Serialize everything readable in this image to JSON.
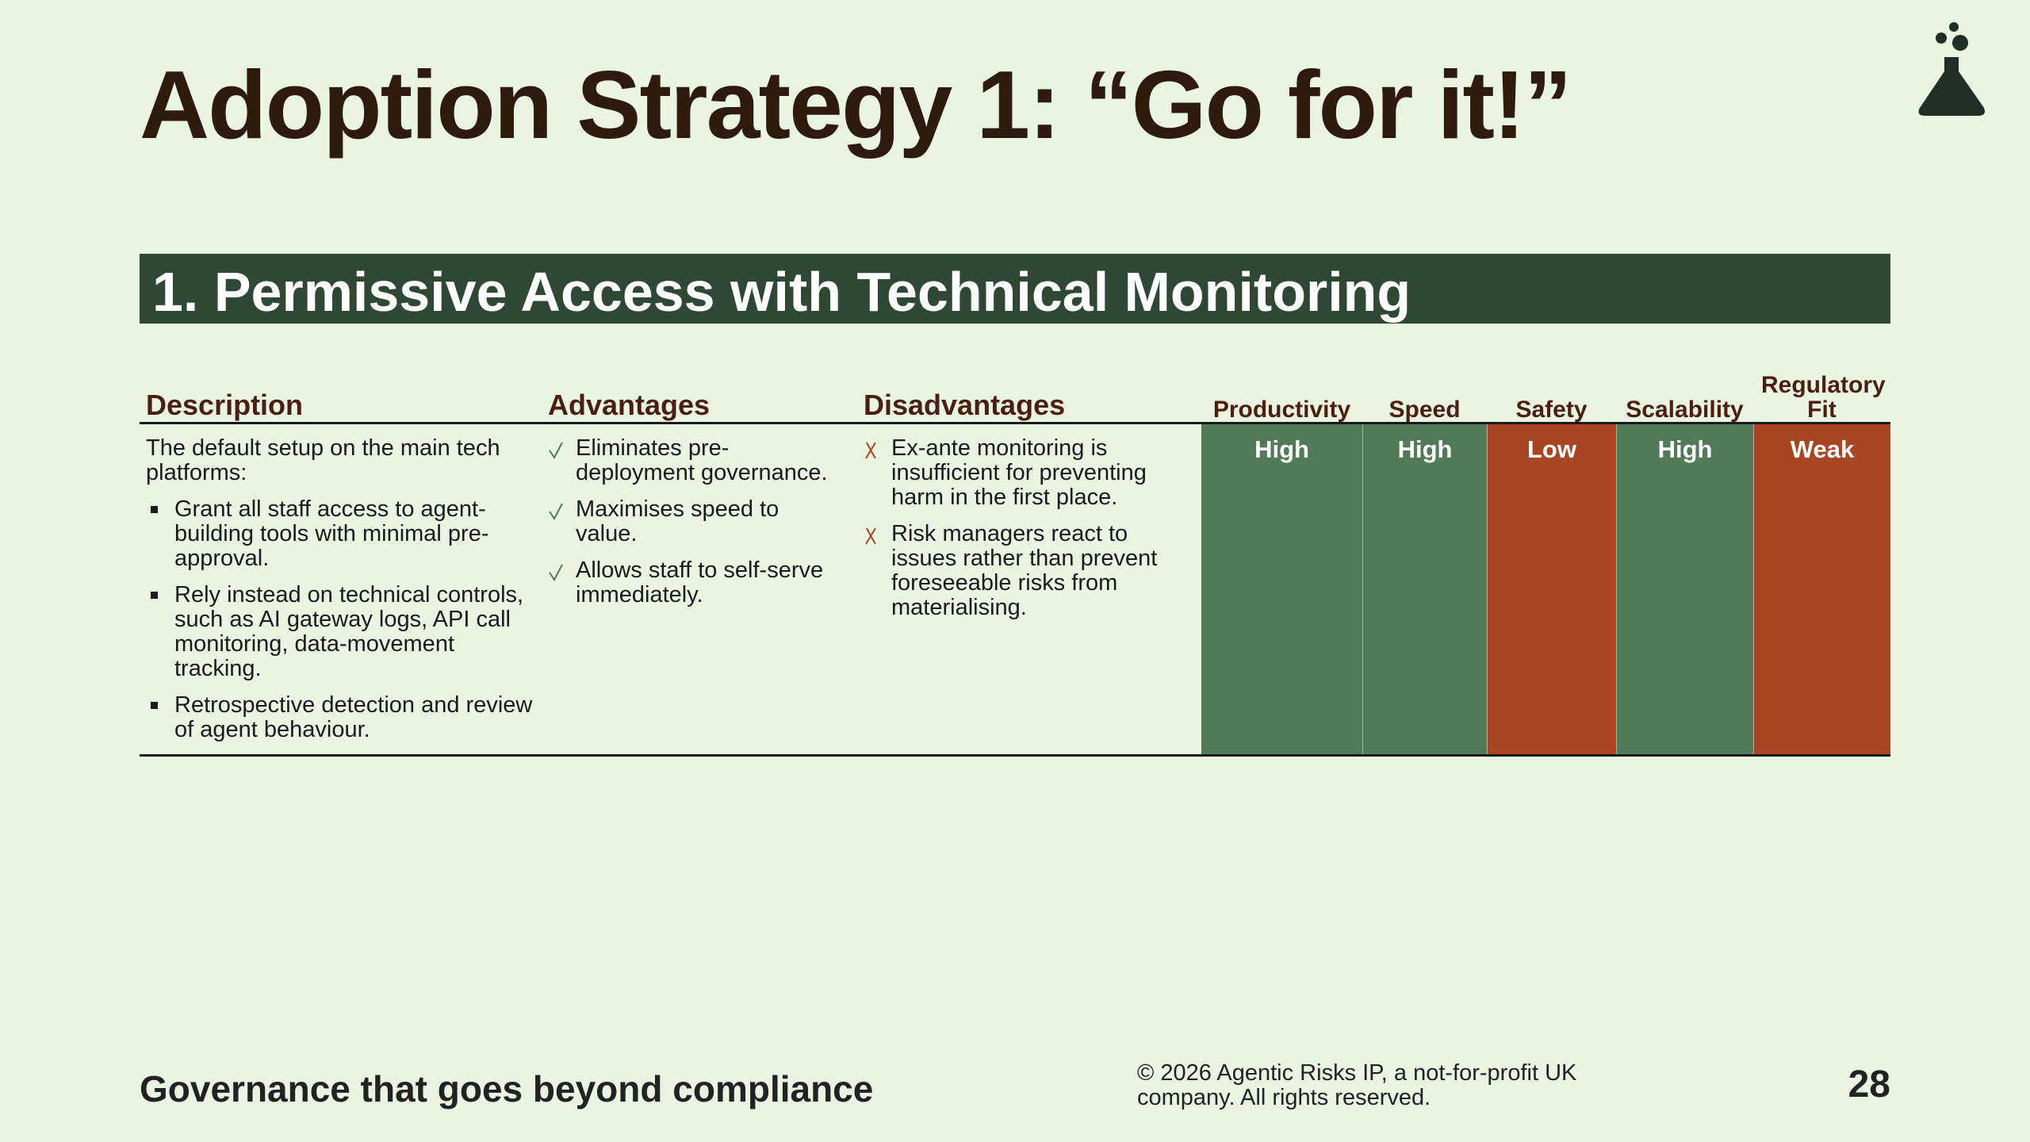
{
  "header": {
    "title": "Adoption Strategy 1: “Go for it!”"
  },
  "section": {
    "title": "1. Permissive Access with Technical Monitoring"
  },
  "table": {
    "columns": [
      "Description",
      "Advantages",
      "Disadvantages",
      "Productivity",
      "Speed",
      "Safety",
      "Scalability",
      "Regulatory Fit"
    ],
    "rows": [
      {
        "description": {
          "intro": "The default setup on the main tech platforms:",
          "bullets": [
            "Grant all staff access to agent-building tools with minimal pre-approval.",
            "Rely instead on technical controls, such as AI gateway logs, API call monitoring, data-movement tracking.",
            "Retrospective detection and review of agent behaviour."
          ]
        },
        "advantages": [
          "Eliminates pre-deployment governance.",
          "Maximises speed to value.",
          "Allows staff to self-serve immediately."
        ],
        "disadvantages": [
          "Ex-ante monitoring is insufficient for preventing harm in the first place.",
          "Risk managers react to issues rather than prevent foreseeable risks from materialising."
        ],
        "ratings": [
          {
            "label": "High",
            "color": "#517a59"
          },
          {
            "label": "High",
            "color": "#517a59"
          },
          {
            "label": "Low",
            "color": "#a84624"
          },
          {
            "label": "High",
            "color": "#517a59"
          },
          {
            "label": "Weak",
            "color": "#a84624"
          }
        ]
      }
    ]
  },
  "footer": {
    "tagline": "Governance that goes beyond compliance",
    "copyright": "© 2026 Agentic Risks IP, a not-for-profit UK company. All rights reserved.",
    "page_number": 28
  }
}
